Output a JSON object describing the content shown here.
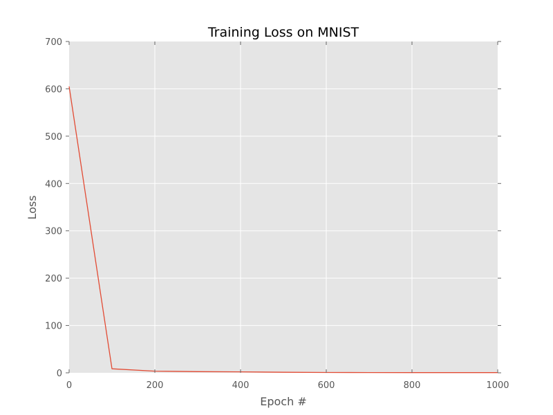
{
  "chart_data": {
    "type": "line",
    "title": "Training Loss on MNIST",
    "xlabel": "Epoch #",
    "ylabel": "Loss",
    "xlim": [
      0,
      1000
    ],
    "ylim": [
      0,
      700
    ],
    "xticks": [
      0,
      200,
      400,
      600,
      800,
      1000
    ],
    "yticks": [
      0,
      100,
      200,
      300,
      400,
      500,
      600,
      700
    ],
    "grid": true,
    "series": [
      {
        "color": "#e24a33",
        "x": [
          0,
          100,
          200,
          300,
          400,
          500,
          600,
          700,
          800,
          900,
          1000
        ],
        "y": [
          605,
          8.5,
          3.5,
          2.5,
          2.0,
          1.2,
          0.8,
          0.6,
          0.5,
          0.4,
          0.4
        ]
      }
    ],
    "colors": {
      "plot_background": "#e5e5e5",
      "grid": "#ffffff",
      "text": "#555555",
      "title": "#000000"
    }
  }
}
